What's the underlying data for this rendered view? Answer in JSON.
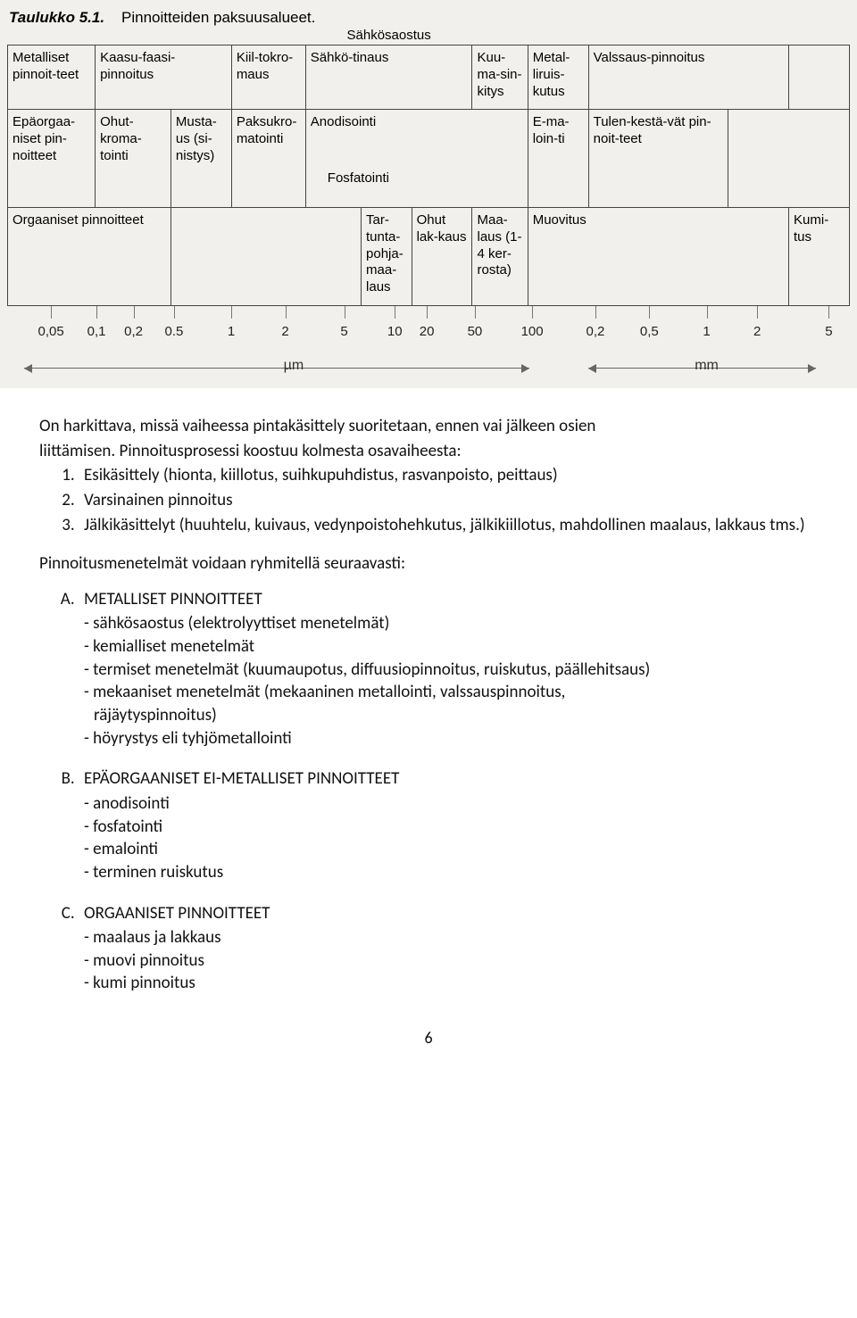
{
  "table": {
    "caption_prefix": "Taulukko 5.1.",
    "caption_rest": "Pinnoitteiden paksuusalueet.",
    "bg": "#f2f0ec",
    "border": "#444444",
    "row1": {
      "c1": "Metalliset pinnoit-teet",
      "c2": "Kaasu-faasi-pinnoitus",
      "c3": "Kiil-tokro-maus",
      "span_top": "Sähkösaostus",
      "c4": "Sähkö-tinaus",
      "c6": "Kuu-ma-sin-kitys",
      "c7": "Metal-liruis-kutus",
      "c8": "Valssaus-pinnoitus"
    },
    "row2": {
      "c1": "Epäorgaa-niset pin-noitteet",
      "c2": "Ohut-kroma-tointi",
      "c3": "Musta-us (si-nistys)",
      "c4": "Paksukro-matointi",
      "c5": "Anodisointi",
      "mid": "Fosfatointi",
      "c7": "E-ma-loin-ti",
      "c8": "Tulen-kestä-vät pin-noit-teet"
    },
    "row3": {
      "c1": "Orgaaniset pinnoitteet",
      "c4": "Tar-tunta-pohja-maa-laus",
      "c5": "Ohut lak-kaus",
      "c6": "Maa-laus (1-4 ker-rosta)",
      "c7": "Muovitus",
      "c10": "Kumi-tus"
    },
    "scale": {
      "left": [
        {
          "v": "0,05",
          "pct": 5.2
        },
        {
          "v": "0,1",
          "pct": 10.6
        },
        {
          "v": "0,2",
          "pct": 15.0
        },
        {
          "v": "0.5",
          "pct": 19.8
        },
        {
          "v": "1",
          "pct": 26.6
        },
        {
          "v": "2",
          "pct": 33.0
        },
        {
          "v": "5",
          "pct": 40.0
        },
        {
          "v": "10",
          "pct": 46.0
        },
        {
          "v": "20",
          "pct": 49.8
        },
        {
          "v": "50",
          "pct": 55.5
        },
        {
          "v": "100",
          "pct": 62.3
        }
      ],
      "right": [
        {
          "v": "0,2",
          "pct": 69.8
        },
        {
          "v": "0,5",
          "pct": 76.2
        },
        {
          "v": "1",
          "pct": 83.0
        },
        {
          "v": "2",
          "pct": 89.0
        },
        {
          "v": "5",
          "pct": 97.5
        }
      ],
      "unit_left": "µm",
      "unit_right": "mm",
      "divider_pct": 66.0
    }
  },
  "body": {
    "para1a": "On harkittava, missä vaiheessa pintakäsittely suoritetaan, ennen vai jälkeen osien",
    "para1b": "liittämisen. Pinnoitusprosessi koostuu kolmesta osavaiheesta:",
    "steps": [
      "Esikäsittely (hionta, kiillotus, suihkupuhdistus, rasvanpoisto, peittaus)",
      "Varsinainen pinnoitus",
      "Jälkikäsittelyt (huuhtelu, kuivaus, vedynpoistohehkutus, jälkikiillotus, mahdollinen maalaus, lakkaus tms.)"
    ],
    "para2": "Pinnoitusmenetelmät voidaan ryhmitellä seuraavasti:",
    "groups": [
      {
        "title": "METALLISET PINNOITTEET",
        "items": [
          "sähkösaostus (elektrolyyttiset menetelmät)",
          "kemialliset menetelmät",
          "termiset menetelmät (kuumaupotus, diffuusiopinnoitus, ruiskutus, päällehitsaus)"
        ],
        "items_cont": [
          {
            "first": "mekaaniset menetelmät (mekaaninen metallointi, valssauspinnoitus,",
            "cont": "räjäytyspinnoitus)"
          },
          {
            "first": "höyrystys eli tyhjömetallointi",
            "cont": null
          }
        ]
      },
      {
        "title": "EPÄORGAANISET EI-METALLISET PINNOITTEET",
        "items": [
          "anodisointi",
          "fosfatointi",
          "emalointi",
          "terminen ruiskutus"
        ]
      },
      {
        "title": "ORGAANISET PINNOITTEET",
        "items": [
          "maalaus ja lakkaus",
          "muovi pinnoitus",
          "kumi pinnoitus"
        ]
      }
    ],
    "page_number": "6"
  }
}
